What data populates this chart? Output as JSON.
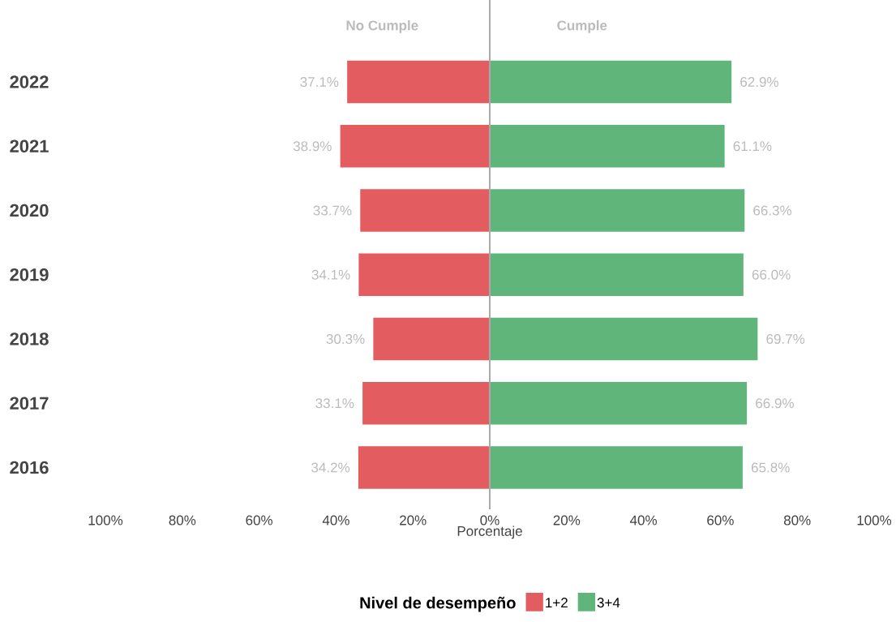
{
  "chart_data": {
    "type": "bar",
    "orientation": "horizontal",
    "categories": [
      "2022",
      "2021",
      "2020",
      "2019",
      "2018",
      "2017",
      "2016"
    ],
    "series": [
      {
        "name": "1+2",
        "color": "#e35d60",
        "values": [
          37.1,
          38.9,
          33.7,
          34.1,
          30.3,
          33.1,
          34.2
        ],
        "base": [
          -37.1,
          -38.9,
          -33.7,
          -34.1,
          -30.3,
          -33.1,
          -34.2
        ],
        "value_labels": [
          "37.1%",
          "38.9%",
          "33.7%",
          "34.1%",
          "30.3%",
          "33.1%",
          "34.2%"
        ]
      },
      {
        "name": "3+4",
        "color": "#5fb57a",
        "values": [
          62.9,
          61.1,
          66.3,
          66.0,
          69.7,
          66.9,
          65.8
        ],
        "value_labels": [
          "62.9%",
          "61.1%",
          "66.3%",
          "66.0%",
          "69.7%",
          "66.9%",
          "65.8%"
        ]
      }
    ],
    "xlim": [
      -100,
      100
    ],
    "xticks": [
      {
        "value": -100,
        "label": "100%"
      },
      {
        "value": -80,
        "label": "80%"
      },
      {
        "value": -60,
        "label": "60%"
      },
      {
        "value": -40,
        "label": "40%"
      },
      {
        "value": -20,
        "label": "20%"
      },
      {
        "value": 0,
        "label": "0%"
      },
      {
        "value": 20,
        "label": "20%"
      },
      {
        "value": 40,
        "label": "40%"
      },
      {
        "value": 60,
        "label": "60%"
      },
      {
        "value": 80,
        "label": "80%"
      },
      {
        "value": 100,
        "label": "100%"
      }
    ],
    "xlabel": "Porcentaje",
    "legend_title": "Nivel de desempeño",
    "legend": "bottom",
    "grid": false,
    "ref_lines": [
      {
        "axis": "x",
        "value": 0,
        "color": "#aaaaaa"
      }
    ],
    "annotations": [
      "No Cumple",
      "Cumple"
    ]
  }
}
